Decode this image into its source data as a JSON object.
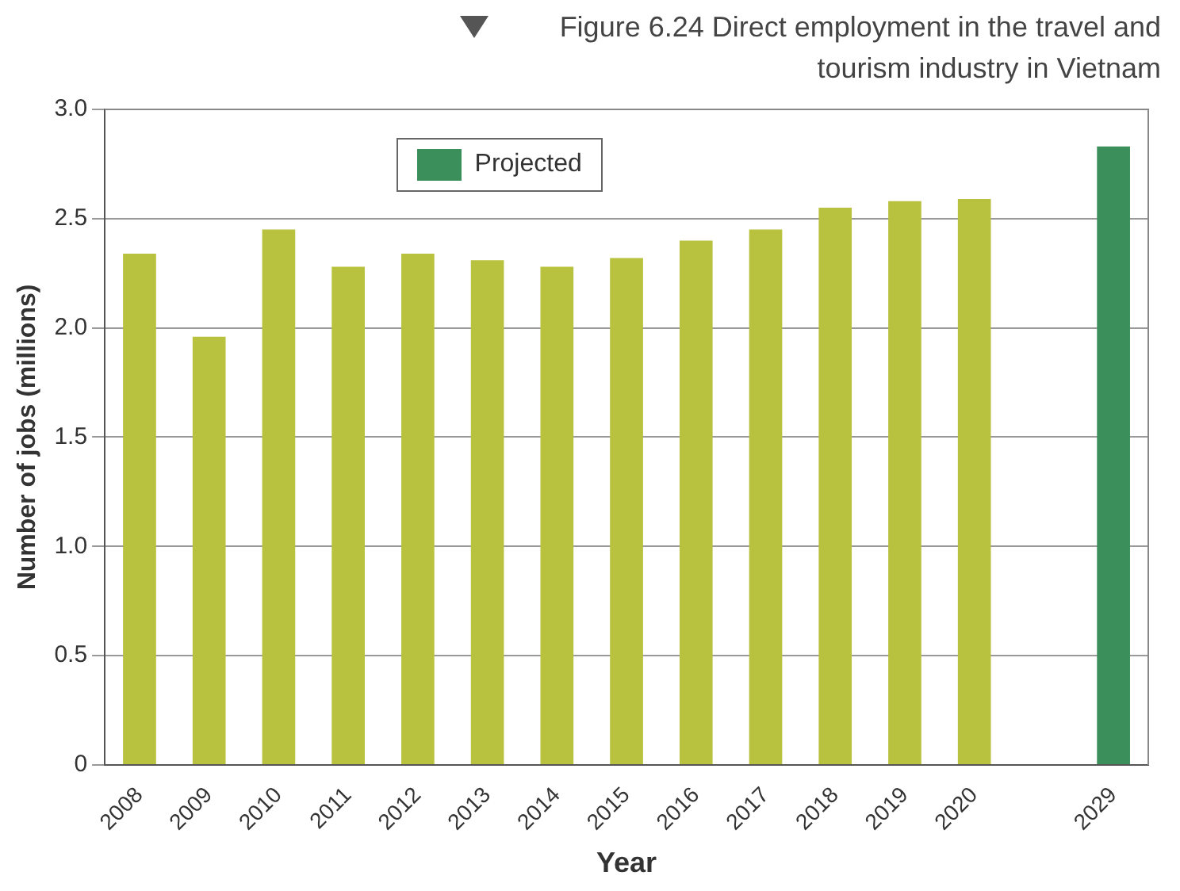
{
  "chart_data": {
    "type": "bar",
    "title": "Figure 6.24 Direct employment in the travel and tourism industry in Vietnam",
    "xlabel": "Year",
    "ylabel": "Number of jobs (millions)",
    "categories": [
      "2008",
      "2009",
      "2010",
      "2011",
      "2012",
      "2013",
      "2014",
      "2015",
      "2016",
      "2017",
      "2018",
      "2019",
      "2020",
      null,
      "2029"
    ],
    "series": [
      {
        "color": "#b8c23e",
        "values": [
          2.34,
          1.96,
          2.45,
          2.28,
          2.34,
          2.31,
          2.28,
          2.32,
          2.4,
          2.45,
          2.55,
          2.58,
          2.59,
          null,
          null
        ]
      },
      {
        "name": "Projected",
        "color": "#3a8f5a",
        "values": [
          null,
          null,
          null,
          null,
          null,
          null,
          null,
          null,
          null,
          null,
          null,
          null,
          null,
          null,
          2.83
        ]
      }
    ],
    "ylim": [
      0,
      3
    ],
    "yticks": [
      {
        "value": 0,
        "label": "0"
      },
      0.5,
      {
        "value": 1,
        "label": "1.0"
      },
      1.5,
      {
        "value": 2,
        "label": "2.0"
      },
      2.5,
      {
        "value": 3,
        "label": "3.0"
      }
    ],
    "grid": "y",
    "legend": "top"
  }
}
